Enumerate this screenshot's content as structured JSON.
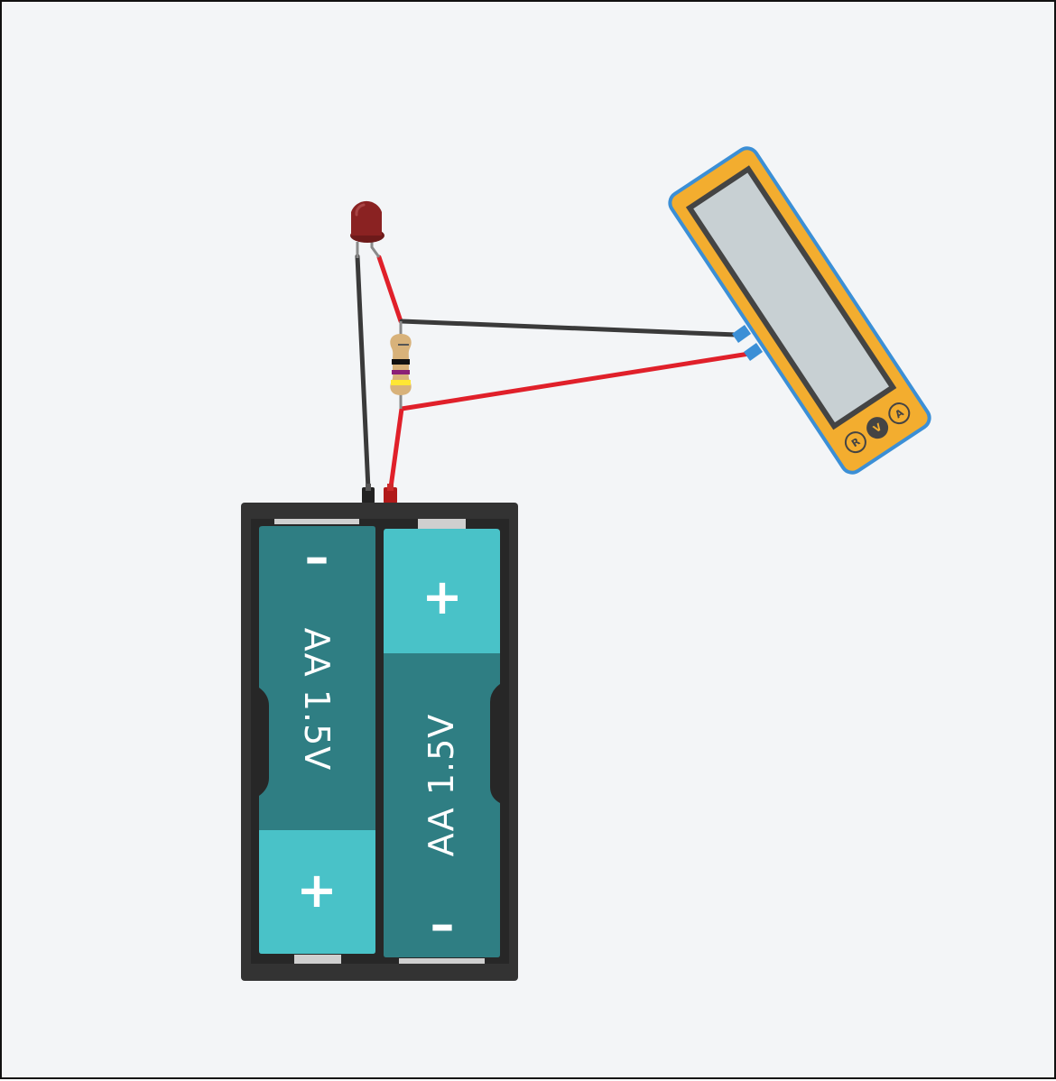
{
  "colors": {
    "background": "#f3f5f7",
    "wire_black": "#3a3a3a",
    "wire_red": "#e0202a",
    "battery_holder": "#333333",
    "battery_body": "#2f7e83",
    "battery_positive_cap": "#49c2c8",
    "led_red": "#8a2222",
    "resistor_body": "#d8b27a",
    "meter_body": "#f3ad2f",
    "meter_outline": "#3b8fd6",
    "meter_screen": "#c8d0d3"
  },
  "components": {
    "battery_cells": [
      {
        "label": "AA 1.5V",
        "minus": "–",
        "plus": "+"
      },
      {
        "label": "AA 1.5V",
        "minus": "–",
        "plus": "+"
      }
    ],
    "led": {
      "icon": "led-icon",
      "color": "red"
    },
    "resistor": {
      "icon": "resistor-icon",
      "bands": [
        "#111111",
        "#8b1e77",
        "#ffe633",
        "#c9a200"
      ]
    },
    "multimeter": {
      "icon": "multimeter-icon",
      "mode_buttons": [
        "R",
        "V",
        "A"
      ],
      "selected_mode": "V"
    }
  },
  "wires": [
    {
      "name": "battery-neg-to-led",
      "color": "black"
    },
    {
      "name": "led-to-resistor",
      "color": "red"
    },
    {
      "name": "resistor-to-battery-pos",
      "color": "red"
    },
    {
      "name": "resistor-top-to-meter",
      "color": "black"
    },
    {
      "name": "resistor-bottom-to-meter",
      "color": "red"
    }
  ]
}
